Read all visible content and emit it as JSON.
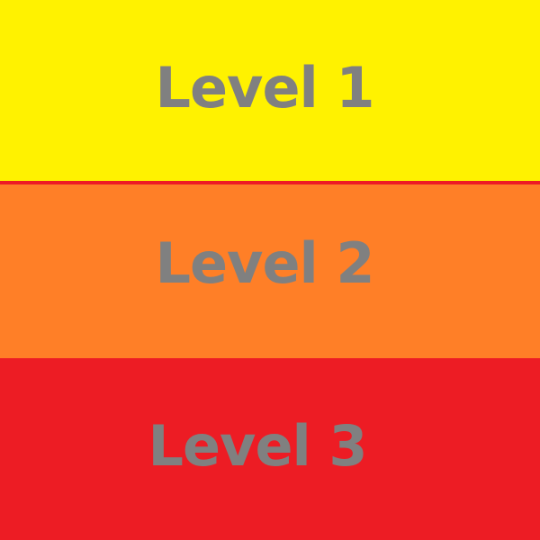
{
  "levels": [
    {
      "label": "Level 1",
      "color": "#FFF200"
    },
    {
      "label": "Level 2",
      "color": "#FF7F27"
    },
    {
      "label": "Level 3",
      "color": "#ED1C24"
    }
  ],
  "divider_color": "#ED1C24",
  "text_color": "#808080"
}
